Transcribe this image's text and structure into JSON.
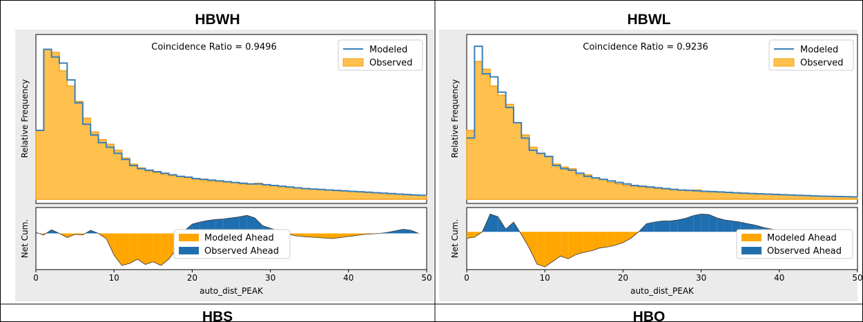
{
  "panels": [
    {
      "label": "HBWH",
      "chart_data": {
        "type": "step-area",
        "annotation": "Coincidence Ratio = 0.9496",
        "xlabel": "auto_dist_PEAK",
        "ylabel_top": "Relative Frequency",
        "ylabel_bottom": "Net Cum.",
        "xlim": [
          0,
          50
        ],
        "xticks": [
          0,
          10,
          20,
          30,
          40,
          50
        ],
        "top_legend": [
          "Modeled",
          "Observed"
        ],
        "bottom_legend": [
          "Modeled Ahead",
          "Observed Ahead"
        ],
        "top_legend_loc": "upper right",
        "bottom_legend_loc": "center",
        "bins": [
          0,
          1,
          2,
          3,
          4,
          5,
          6,
          7,
          8,
          9,
          10,
          11,
          12,
          13,
          14,
          15,
          16,
          17,
          18,
          19,
          20,
          21,
          22,
          23,
          24,
          25,
          26,
          27,
          28,
          29,
          30,
          31,
          32,
          33,
          34,
          35,
          36,
          37,
          38,
          39,
          40,
          41,
          42,
          43,
          44,
          45,
          46,
          47,
          48,
          49,
          50
        ],
        "modeled": [
          0.45,
          0.98,
          0.93,
          0.89,
          0.78,
          0.63,
          0.49,
          0.42,
          0.37,
          0.34,
          0.3,
          0.26,
          0.22,
          0.2,
          0.19,
          0.18,
          0.17,
          0.16,
          0.15,
          0.145,
          0.135,
          0.13,
          0.125,
          0.12,
          0.115,
          0.11,
          0.105,
          0.1,
          0.1,
          0.095,
          0.09,
          0.085,
          0.08,
          0.075,
          0.07,
          0.067,
          0.064,
          0.061,
          0.058,
          0.055,
          0.052,
          0.049,
          0.046,
          0.043,
          0.04,
          0.037,
          0.034,
          0.031,
          0.028,
          0.026
        ],
        "observed": [
          0.45,
          0.98,
          0.96,
          0.84,
          0.74,
          0.64,
          0.53,
          0.44,
          0.39,
          0.36,
          0.32,
          0.27,
          0.23,
          0.205,
          0.185,
          0.175,
          0.165,
          0.155,
          0.148,
          0.14,
          0.13,
          0.125,
          0.12,
          0.118,
          0.112,
          0.108,
          0.1,
          0.098,
          0.105,
          0.092,
          0.088,
          0.082,
          0.078,
          0.073,
          0.068,
          0.066,
          0.063,
          0.06,
          0.057,
          0.054,
          0.051,
          0.048,
          0.045,
          0.042,
          0.039,
          0.036,
          0.033,
          0.03,
          0.028,
          0.026
        ],
        "net_x": [
          0,
          1,
          2,
          3,
          4,
          5,
          6,
          7,
          8,
          9,
          10,
          11,
          12,
          13,
          14,
          15,
          16,
          17,
          18,
          19,
          20,
          21,
          22,
          23,
          24,
          25,
          26,
          27,
          28,
          29,
          30,
          31,
          32,
          33,
          34,
          35,
          36,
          37,
          38,
          39,
          40,
          41,
          42,
          43,
          44,
          45,
          46,
          47,
          48,
          49
        ],
        "net_cum": [
          0.02,
          -0.03,
          0.07,
          0.0,
          -0.08,
          -0.02,
          -0.03,
          0.06,
          0.0,
          -0.1,
          -0.42,
          -0.62,
          -0.58,
          -0.5,
          -0.6,
          -0.55,
          -0.62,
          -0.5,
          -0.3,
          0.05,
          0.18,
          0.22,
          0.25,
          0.27,
          0.28,
          0.3,
          0.32,
          0.35,
          0.3,
          0.15,
          0.1,
          0.05,
          0.0,
          -0.04,
          -0.06,
          -0.07,
          -0.08,
          -0.09,
          -0.1,
          -0.08,
          -0.06,
          -0.04,
          -0.02,
          -0.01,
          0.0,
          0.02,
          0.05,
          0.08,
          0.06,
          0.0
        ],
        "ylim_bottom": [
          -0.7,
          0.5
        ]
      }
    },
    {
      "label": "HBWL",
      "chart_data": {
        "type": "step-area",
        "annotation": "Coincidence Ratio = 0.9236",
        "xlabel": "auto_dist_PEAK",
        "ylabel_top": "Relative Frequency",
        "ylabel_bottom": "Net Cum.",
        "xlim": [
          0,
          50
        ],
        "xticks": [
          0,
          10,
          20,
          30,
          40,
          50
        ],
        "top_legend": [
          "Modeled",
          "Observed"
        ],
        "bottom_legend": [
          "Modeled Ahead",
          "Observed Ahead"
        ],
        "top_legend_loc": "upper right",
        "bottom_legend_loc": "lower right",
        "bins": [
          0,
          1,
          2,
          3,
          4,
          5,
          6,
          7,
          8,
          9,
          10,
          11,
          12,
          13,
          14,
          15,
          16,
          17,
          18,
          19,
          20,
          21,
          22,
          23,
          24,
          25,
          26,
          27,
          28,
          29,
          30,
          31,
          32,
          33,
          34,
          35,
          36,
          37,
          38,
          39,
          40,
          41,
          42,
          43,
          44,
          45,
          46,
          47,
          48,
          49,
          50
        ],
        "modeled": [
          0.4,
          1.0,
          0.82,
          0.8,
          0.7,
          0.6,
          0.5,
          0.4,
          0.32,
          0.3,
          0.28,
          0.22,
          0.2,
          0.19,
          0.17,
          0.15,
          0.14,
          0.13,
          0.12,
          0.11,
          0.1,
          0.09,
          0.085,
          0.08,
          0.075,
          0.07,
          0.065,
          0.06,
          0.058,
          0.055,
          0.052,
          0.05,
          0.048,
          0.045,
          0.042,
          0.04,
          0.038,
          0.036,
          0.034,
          0.032,
          0.03,
          0.028,
          0.026,
          0.024,
          0.022,
          0.02,
          0.019,
          0.018,
          0.017,
          0.016
        ],
        "observed": [
          0.45,
          0.9,
          0.85,
          0.74,
          0.68,
          0.62,
          0.5,
          0.42,
          0.34,
          0.3,
          0.28,
          0.23,
          0.21,
          0.2,
          0.16,
          0.16,
          0.14,
          0.13,
          0.11,
          0.1,
          0.09,
          0.085,
          0.08,
          0.076,
          0.07,
          0.066,
          0.063,
          0.062,
          0.058,
          0.06,
          0.05,
          0.049,
          0.046,
          0.044,
          0.041,
          0.038,
          0.036,
          0.034,
          0.032,
          0.03,
          0.029,
          0.027,
          0.025,
          0.023,
          0.021,
          0.02,
          0.019,
          0.018,
          0.017,
          0.016
        ],
        "net_x": [
          0,
          1,
          2,
          3,
          4,
          5,
          6,
          7,
          8,
          9,
          10,
          11,
          12,
          13,
          14,
          15,
          16,
          17,
          18,
          19,
          20,
          21,
          22,
          23,
          24,
          25,
          26,
          27,
          28,
          29,
          30,
          31,
          32,
          33,
          34,
          35,
          36,
          37,
          38,
          39,
          40,
          41,
          42,
          43,
          44,
          45,
          46,
          47,
          48,
          49
        ],
        "net_cum": [
          -0.12,
          -0.1,
          0.0,
          0.33,
          0.28,
          0.05,
          0.18,
          -0.05,
          -0.3,
          -0.6,
          -0.65,
          -0.55,
          -0.45,
          -0.5,
          -0.42,
          -0.38,
          -0.35,
          -0.3,
          -0.28,
          -0.25,
          -0.2,
          -0.12,
          0.0,
          0.15,
          0.18,
          0.2,
          0.2,
          0.22,
          0.25,
          0.3,
          0.33,
          0.32,
          0.26,
          0.22,
          0.2,
          0.18,
          0.15,
          0.12,
          0.08,
          0.05,
          0.03,
          0.02,
          0.01,
          0.0,
          0.0,
          0.0,
          0.0,
          0.0,
          0.0,
          0.0
        ],
        "ylim_bottom": [
          -0.7,
          0.45
        ]
      }
    }
  ],
  "bottom_labels": [
    "HBS",
    "HBO"
  ],
  "colors": {
    "modeled_line": "#3a7fb8",
    "observed_fill": "#ffc04d",
    "observed_edge": "#f2a01c",
    "modeled_ahead": "#ffa600",
    "observed_ahead": "#1f6fb0",
    "plot_bg": "#ffffff",
    "figure_bg": "#ebebeb",
    "grid_line": "#000000"
  }
}
